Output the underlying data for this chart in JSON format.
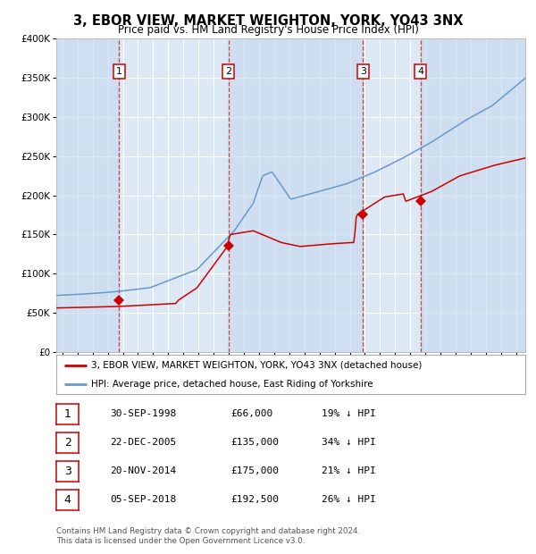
{
  "title": "3, EBOR VIEW, MARKET WEIGHTON, YORK, YO43 3NX",
  "subtitle": "Price paid vs. HM Land Registry's House Price Index (HPI)",
  "footer": "Contains HM Land Registry data © Crown copyright and database right 2024.\nThis data is licensed under the Open Government Licence v3.0.",
  "sales": [
    {
      "num": 1,
      "date_label": "30-SEP-1998",
      "date_year": 1998.75,
      "price": 66000,
      "pct": "19% ↓ HPI"
    },
    {
      "num": 2,
      "date_label": "22-DEC-2005",
      "date_year": 2005.97,
      "price": 135000,
      "pct": "34% ↓ HPI"
    },
    {
      "num": 3,
      "date_label": "20-NOV-2014",
      "date_year": 2014.88,
      "price": 175000,
      "pct": "21% ↓ HPI"
    },
    {
      "num": 4,
      "date_label": "05-SEP-2018",
      "date_year": 2018.67,
      "price": 192500,
      "pct": "26% ↓ HPI"
    }
  ],
  "legend_property": "3, EBOR VIEW, MARKET WEIGHTON, YORK, YO43 3NX (detached house)",
  "legend_hpi": "HPI: Average price, detached house, East Riding of Yorkshire",
  "ylim": [
    0,
    400000
  ],
  "xlim_start": 1994.6,
  "xlim_end": 2025.6,
  "red_color": "#cc0000",
  "blue_color": "#6699cc",
  "vline_color": "#cc2222",
  "hpi_waypoints_t": [
    0.0,
    0.065,
    0.13,
    0.2,
    0.3,
    0.38,
    0.42,
    0.44,
    0.46,
    0.5,
    0.56,
    0.62,
    0.68,
    0.74,
    0.8,
    0.87,
    0.93,
    1.0
  ],
  "hpi_waypoints_v": [
    72000,
    74000,
    77000,
    82000,
    105000,
    155000,
    190000,
    225000,
    230000,
    195000,
    205000,
    215000,
    230000,
    248000,
    268000,
    295000,
    315000,
    350000
  ],
  "red_waypoints_t": [
    0.0,
    0.065,
    0.13,
    0.195,
    0.255,
    0.26,
    0.3,
    0.365,
    0.37,
    0.42,
    0.48,
    0.52,
    0.58,
    0.635,
    0.64,
    0.7,
    0.74,
    0.745,
    0.8,
    0.86,
    0.93,
    1.0
  ],
  "red_waypoints_v": [
    56000,
    57000,
    58000,
    60000,
    62000,
    66000,
    82000,
    135000,
    150000,
    155000,
    140000,
    135000,
    138000,
    140000,
    175000,
    198000,
    202000,
    192500,
    205000,
    225000,
    238000,
    248000
  ]
}
